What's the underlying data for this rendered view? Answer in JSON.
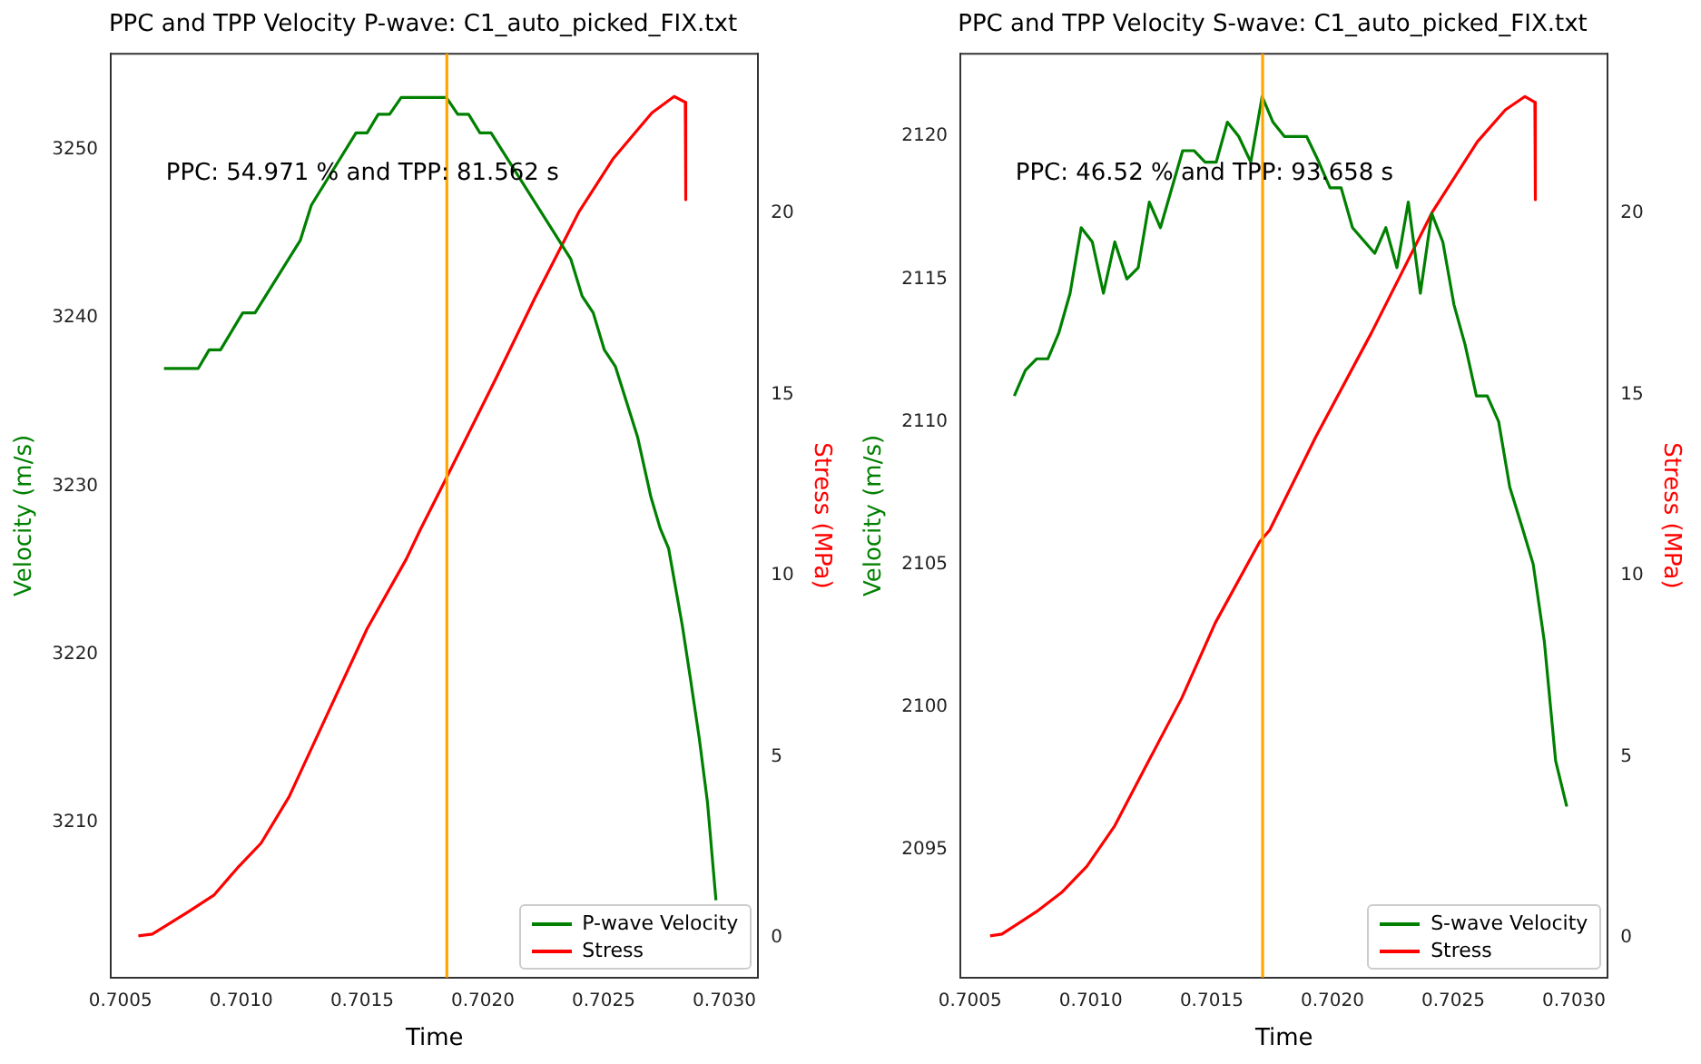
{
  "chart_data": [
    {
      "type": "line",
      "title": "PPC and TPP Velocity P-wave: C1_auto_picked_FIX.txt",
      "xlabel": "Time",
      "ylabel": "Velocity (m/s)",
      "y2label": "Stress (MPa)",
      "annotations": [
        "PPC: 54.971 % and TPP: 81.562 s"
      ],
      "xlim": [
        0.70046,
        0.70314
      ],
      "xticks": [
        0.7005,
        {
          "value": 0.701,
          "label": "0.7010"
        },
        0.7015,
        {
          "value": 0.702,
          "label": "0.7020"
        },
        0.7025,
        {
          "value": 0.703,
          "label": "0.7030"
        }
      ],
      "ylim": [
        3200.8,
        3255.7
      ],
      "yticks": [
        3210,
        3220,
        3230,
        3240,
        3250
      ],
      "y2lim": [
        -1.1,
        24.4
      ],
      "y2ticks": [
        0,
        5,
        10,
        15,
        20
      ],
      "legend": "bottom right",
      "series": [
        {
          "name": "P-wave Velocity",
          "color": "#008000",
          "x": [
            0.70068,
            0.700822,
            0.700867,
            0.700914,
            0.701006,
            0.701057,
            0.701244,
            0.70129,
            0.701475,
            0.701521,
            0.701567,
            0.701614,
            0.701662,
            0.701849,
            0.701896,
            0.701941,
            0.701988,
            0.702034,
            0.702364,
            0.702411,
            0.702457,
            0.702503,
            0.702549,
            0.702641,
            0.702695,
            0.702734,
            0.702769,
            0.702826,
            0.702861,
            0.702896,
            0.70293,
            0.702965
          ],
          "values": [
            3237.0,
            3237.0,
            3238.1,
            3238.1,
            3240.3,
            3240.3,
            3244.6,
            3246.7,
            3251.0,
            3251.0,
            3252.1,
            3252.1,
            3253.1,
            3253.1,
            3252.1,
            3252.1,
            3251.0,
            3251.0,
            3243.5,
            3241.3,
            3240.3,
            3238.1,
            3237.1,
            3232.9,
            3229.4,
            3227.5,
            3226.3,
            3221.7,
            3218.4,
            3215.0,
            3211.2,
            3205.4
          ]
        },
        {
          "name": "Stress",
          "color": "#ff0000",
          "axis": "y2",
          "x": [
            0.700574,
            0.700632,
            0.700782,
            0.700886,
            0.70099,
            0.701082,
            0.701198,
            0.701359,
            0.701521,
            0.701683,
            0.70174,
            0.701849,
            0.702052,
            0.702215,
            0.702399,
            0.702538,
            0.7027,
            0.702792,
            0.702838,
            0.70284
          ],
          "values": [
            0.05,
            0.1,
            0.72,
            1.17,
            1.97,
            2.61,
            3.89,
            6.21,
            8.53,
            10.45,
            11.25,
            12.69,
            15.41,
            17.65,
            20.05,
            21.49,
            22.77,
            23.22,
            23.06,
            20.37
          ]
        }
      ],
      "ref_lines": [
        {
          "axis": "x",
          "value": 0.701851,
          "color": "#ffa500"
        }
      ]
    },
    {
      "type": "line",
      "title": "PPC and TPP Velocity S-wave: C1_auto_picked_FIX.txt",
      "xlabel": "Time",
      "ylabel": "Velocity (m/s)",
      "y2label": "Stress (MPa)",
      "annotations": [
        "PPC: 46.52 % and TPP: 93.658 s"
      ],
      "xlim": [
        0.70046,
        0.70314
      ],
      "xticks": [
        0.7005,
        {
          "value": 0.701,
          "label": "0.7010"
        },
        0.7015,
        {
          "value": 0.702,
          "label": "0.7020"
        },
        0.7025,
        {
          "value": 0.703,
          "label": "0.7030"
        }
      ],
      "ylim": [
        2090.5,
        2122.9
      ],
      "yticks": [
        2095,
        2100,
        2105,
        2110,
        2115,
        2120
      ],
      "y2lim": [
        -1.1,
        24.4
      ],
      "y2ticks": [
        0,
        5,
        10,
        15,
        20
      ],
      "legend": "bottom right",
      "series": [
        {
          "name": "S-wave Velocity",
          "color": "#008000",
          "x": [
            0.700683,
            0.700729,
            0.700775,
            0.700822,
            0.700867,
            0.700914,
            0.70096,
            0.701006,
            0.701052,
            0.701099,
            0.701149,
            0.701196,
            0.701242,
            0.701288,
            0.70138,
            0.701427,
            0.701473,
            0.701519,
            0.701565,
            0.701612,
            0.701662,
            0.701709,
            0.701754,
            0.701801,
            0.701893,
            0.701944,
            0.70199,
            0.702036,
            0.702083,
            0.702175,
            0.702221,
            0.702267,
            0.702314,
            0.702364,
            0.702411,
            0.702457,
            0.702503,
            0.702549,
            0.702596,
            0.702641,
            0.702688,
            0.702734,
            0.702785,
            0.702831,
            0.702877,
            0.702924,
            0.70297
          ],
          "values": [
            2110.9,
            2111.8,
            2112.2,
            2112.2,
            2113.1,
            2114.5,
            2116.8,
            2116.3,
            2114.5,
            2116.3,
            2115.0,
            2115.4,
            2117.7,
            2116.8,
            2119.5,
            2119.5,
            2119.1,
            2119.1,
            2120.5,
            2120.0,
            2119.1,
            2121.4,
            2120.5,
            2120.0,
            2120.0,
            2119.1,
            2118.2,
            2118.2,
            2116.8,
            2115.9,
            2116.8,
            2115.4,
            2117.7,
            2114.5,
            2117.3,
            2116.3,
            2114.1,
            2112.7,
            2110.9,
            2110.9,
            2110.0,
            2107.7,
            2106.3,
            2105.0,
            2102.3,
            2098.1,
            2096.5
          ]
        },
        {
          "name": "Stress",
          "color": "#ff0000",
          "axis": "y2",
          "x": [
            0.700583,
            0.700632,
            0.700775,
            0.700879,
            0.700983,
            0.701099,
            0.701237,
            0.701376,
            0.701515,
            0.701699,
            0.70174,
            0.70193,
            0.702161,
            0.702415,
            0.7026,
            0.702716,
            0.702797,
            0.702838,
            0.70284
          ],
          "values": [
            0.05,
            0.1,
            0.72,
            1.25,
            1.97,
            3.09,
            4.85,
            6.61,
            8.69,
            10.93,
            11.25,
            13.81,
            16.69,
            20.05,
            21.97,
            22.85,
            23.22,
            23.06,
            20.37
          ]
        }
      ],
      "ref_lines": [
        {
          "axis": "x",
          "value": 0.701711,
          "color": "#ffa500"
        }
      ]
    }
  ]
}
